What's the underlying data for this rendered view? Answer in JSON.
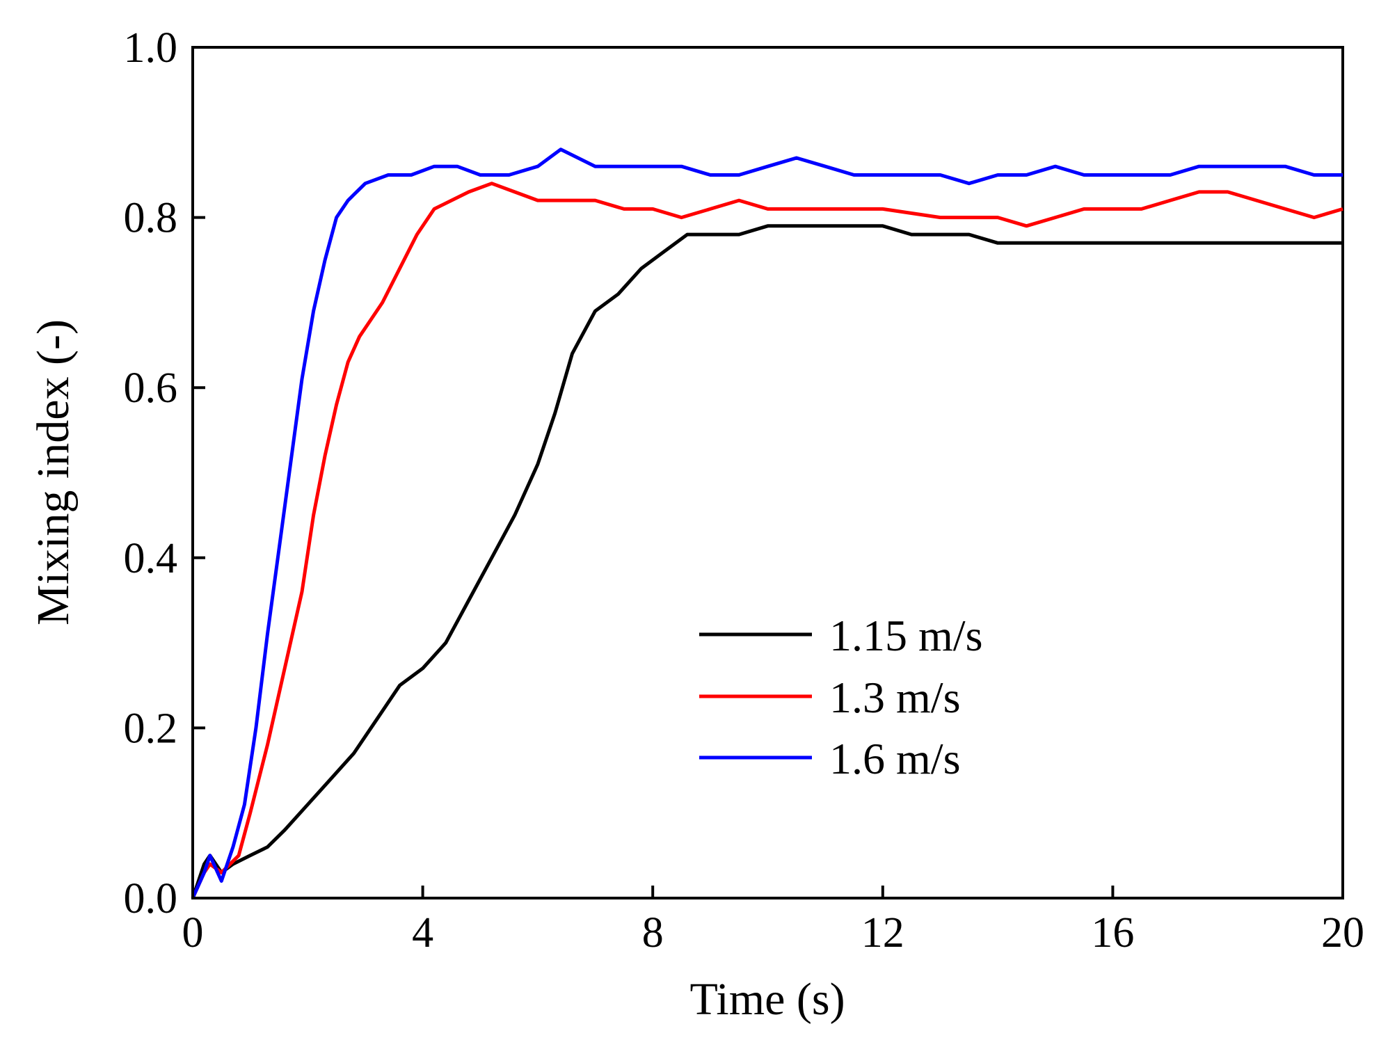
{
  "chart_data": {
    "type": "line",
    "title": "",
    "xlabel": "Time (s)",
    "ylabel": "Mixing index (-)",
    "xlim": [
      0,
      20
    ],
    "ylim": [
      0,
      1.0
    ],
    "xticks": [
      0,
      4,
      8,
      12,
      16,
      20
    ],
    "yticks": [
      0.0,
      0.2,
      0.4,
      0.6,
      0.8,
      1.0
    ],
    "xtick_labels": [
      "0",
      "4",
      "8",
      "12",
      "16",
      "20"
    ],
    "ytick_labels": [
      "0.0",
      "0.2",
      "0.4",
      "0.6",
      "0.8",
      "1.0"
    ],
    "grid": false,
    "legend_position": "lower-right",
    "series": [
      {
        "name": "1.15 m/s",
        "color": "#000000",
        "x": [
          0,
          0.2,
          0.3,
          0.5,
          0.7,
          1.0,
          1.3,
          1.6,
          2.0,
          2.4,
          2.8,
          3.2,
          3.6,
          4.0,
          4.4,
          4.8,
          5.2,
          5.6,
          6.0,
          6.3,
          6.6,
          7.0,
          7.4,
          7.8,
          8.2,
          8.6,
          9.0,
          9.5,
          10.0,
          10.5,
          11.0,
          11.5,
          12.0,
          12.5,
          13.0,
          13.5,
          14.0,
          14.5,
          15.0,
          15.5,
          16.0,
          16.5,
          17.0,
          17.5,
          18.0,
          18.5,
          19.0,
          19.5,
          20.0
        ],
        "y": [
          0.0,
          0.04,
          0.05,
          0.03,
          0.04,
          0.05,
          0.06,
          0.08,
          0.11,
          0.14,
          0.17,
          0.21,
          0.25,
          0.27,
          0.3,
          0.35,
          0.4,
          0.45,
          0.51,
          0.57,
          0.64,
          0.69,
          0.71,
          0.74,
          0.76,
          0.78,
          0.78,
          0.78,
          0.79,
          0.79,
          0.79,
          0.79,
          0.79,
          0.78,
          0.78,
          0.78,
          0.77,
          0.77,
          0.77,
          0.77,
          0.77,
          0.77,
          0.77,
          0.77,
          0.77,
          0.77,
          0.77,
          0.77,
          0.77
        ]
      },
      {
        "name": "1.3 m/s",
        "color": "#ff0000",
        "x": [
          0,
          0.2,
          0.3,
          0.5,
          0.8,
          1.0,
          1.3,
          1.6,
          1.9,
          2.1,
          2.3,
          2.5,
          2.7,
          2.9,
          3.1,
          3.3,
          3.6,
          3.9,
          4.2,
          4.5,
          4.8,
          5.2,
          5.6,
          6.0,
          6.5,
          7.0,
          7.5,
          8.0,
          8.5,
          9.0,
          9.5,
          10.0,
          11.0,
          12.0,
          13.0,
          14.0,
          14.5,
          15.0,
          15.5,
          16.0,
          16.5,
          17.0,
          17.5,
          18.0,
          18.5,
          19.0,
          19.5,
          20.0
        ],
        "y": [
          0.0,
          0.03,
          0.04,
          0.03,
          0.05,
          0.1,
          0.18,
          0.27,
          0.36,
          0.45,
          0.52,
          0.58,
          0.63,
          0.66,
          0.68,
          0.7,
          0.74,
          0.78,
          0.81,
          0.82,
          0.83,
          0.84,
          0.83,
          0.82,
          0.82,
          0.82,
          0.81,
          0.81,
          0.8,
          0.81,
          0.82,
          0.81,
          0.81,
          0.81,
          0.8,
          0.8,
          0.79,
          0.8,
          0.81,
          0.81,
          0.81,
          0.82,
          0.83,
          0.83,
          0.82,
          0.81,
          0.8,
          0.81
        ]
      },
      {
        "name": "1.6 m/s",
        "color": "#0000ff",
        "x": [
          0,
          0.2,
          0.3,
          0.5,
          0.7,
          0.9,
          1.1,
          1.3,
          1.5,
          1.7,
          1.9,
          2.1,
          2.3,
          2.5,
          2.7,
          3.0,
          3.4,
          3.8,
          4.2,
          4.6,
          5.0,
          5.5,
          6.0,
          6.4,
          7.0,
          7.5,
          8.0,
          8.5,
          9.0,
          9.5,
          10.0,
          10.5,
          11.0,
          11.5,
          12.0,
          12.5,
          13.0,
          13.5,
          14.0,
          14.5,
          15.0,
          15.5,
          16.0,
          16.5,
          17.0,
          17.5,
          18.0,
          18.5,
          19.0,
          19.5,
          20.0
        ],
        "y": [
          0.0,
          0.03,
          0.05,
          0.02,
          0.06,
          0.11,
          0.2,
          0.31,
          0.41,
          0.51,
          0.61,
          0.69,
          0.75,
          0.8,
          0.82,
          0.84,
          0.85,
          0.85,
          0.86,
          0.86,
          0.85,
          0.85,
          0.86,
          0.88,
          0.86,
          0.86,
          0.86,
          0.86,
          0.85,
          0.85,
          0.86,
          0.87,
          0.86,
          0.85,
          0.85,
          0.85,
          0.85,
          0.84,
          0.85,
          0.85,
          0.86,
          0.85,
          0.85,
          0.85,
          0.85,
          0.86,
          0.86,
          0.86,
          0.86,
          0.85,
          0.85
        ]
      }
    ]
  }
}
